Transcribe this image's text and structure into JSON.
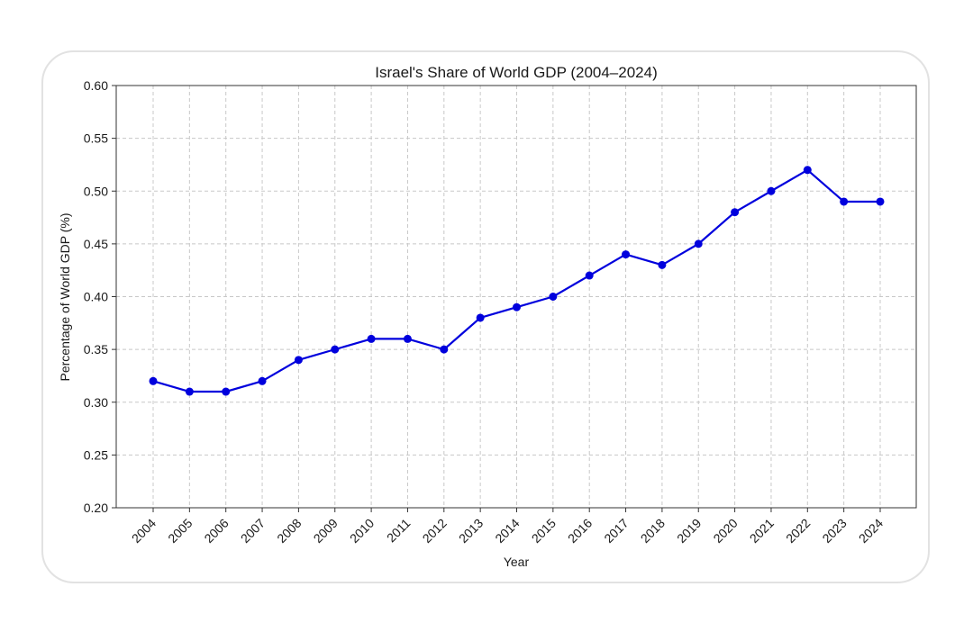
{
  "chart_data": {
    "type": "line",
    "title": "Israel's Share of World GDP (2004–2024)",
    "xlabel": "Year",
    "ylabel": "Percentage of World GDP (%)",
    "x": [
      "2004",
      "2005",
      "2006",
      "2007",
      "2008",
      "2009",
      "2010",
      "2011",
      "2012",
      "2013",
      "2014",
      "2015",
      "2016",
      "2017",
      "2018",
      "2019",
      "2020",
      "2021",
      "2022",
      "2023",
      "2024"
    ],
    "series": [
      {
        "name": "Israel's Share of World GDP",
        "values": [
          0.32,
          0.31,
          0.31,
          0.32,
          0.34,
          0.35,
          0.36,
          0.36,
          0.35,
          0.38,
          0.39,
          0.4,
          0.42,
          0.44,
          0.43,
          0.45,
          0.48,
          0.5,
          0.52,
          0.49,
          0.49
        ],
        "color": "#0000dd",
        "marker": "circle"
      }
    ],
    "ylim": [
      0.2,
      0.6
    ],
    "yticks": [
      "0.20",
      "0.25",
      "0.30",
      "0.35",
      "0.40",
      "0.45",
      "0.50",
      "0.55",
      "0.60"
    ],
    "grid": true
  }
}
